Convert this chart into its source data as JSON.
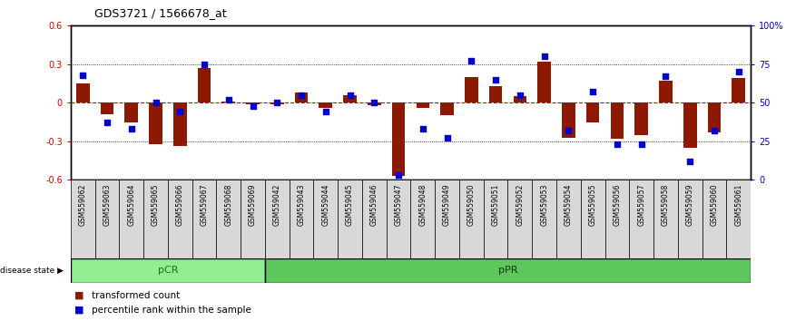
{
  "title": "GDS3721 / 1566678_at",
  "samples": [
    "GSM559062",
    "GSM559063",
    "GSM559064",
    "GSM559065",
    "GSM559066",
    "GSM559067",
    "GSM559068",
    "GSM559069",
    "GSM559042",
    "GSM559043",
    "GSM559044",
    "GSM559045",
    "GSM559046",
    "GSM559047",
    "GSM559048",
    "GSM559049",
    "GSM559050",
    "GSM559051",
    "GSM559052",
    "GSM559053",
    "GSM559054",
    "GSM559055",
    "GSM559056",
    "GSM559057",
    "GSM559058",
    "GSM559059",
    "GSM559060",
    "GSM559061"
  ],
  "transformed_count": [
    0.15,
    -0.09,
    -0.15,
    -0.32,
    -0.34,
    0.27,
    0.01,
    -0.01,
    -0.01,
    0.08,
    -0.04,
    0.06,
    -0.02,
    -0.57,
    -0.04,
    -0.1,
    0.2,
    0.13,
    0.05,
    0.32,
    -0.27,
    -0.15,
    -0.28,
    -0.25,
    0.17,
    -0.35,
    -0.23,
    0.19
  ],
  "percentile_rank": [
    68,
    37,
    33,
    50,
    44,
    75,
    52,
    48,
    50,
    55,
    44,
    55,
    50,
    3,
    33,
    27,
    77,
    65,
    55,
    80,
    32,
    57,
    23,
    23,
    67,
    12,
    32,
    70
  ],
  "pCR_count": 8,
  "pPR_count": 20,
  "ylim": [
    -0.6,
    0.6
  ],
  "bar_color": "#8B1A00",
  "dot_color": "#0000CC",
  "zero_line_color": "#CC0000",
  "pCR_color": "#90EE90",
  "pPR_color": "#5DC65D",
  "pCR_label": "pCR",
  "pPR_label": "pPR",
  "right_yticks": [
    0,
    25,
    50,
    75,
    100
  ],
  "right_ytick_labels": [
    "0",
    "25",
    "50",
    "75",
    "100%"
  ],
  "left_yticks": [
    -0.6,
    -0.3,
    0.0,
    0.3,
    0.6
  ],
  "left_ytick_labels": [
    "-0.6",
    "-0.3",
    "0",
    "0.3",
    "0.6"
  ]
}
